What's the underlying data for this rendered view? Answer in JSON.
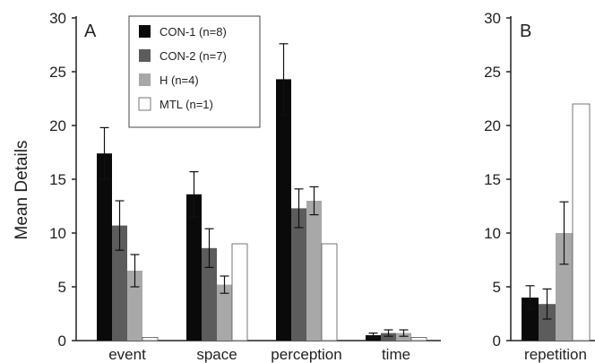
{
  "ylabel": "Mean Details",
  "series_colors": [
    "#0a0a0a",
    "#5c5c5c",
    "#a8a8a8",
    "#ffffff"
  ],
  "chart_data": [
    {
      "type": "bar",
      "panel": "A",
      "categories": [
        "event",
        "space",
        "perception",
        "time"
      ],
      "ylabel": "Mean Details",
      "ylim": [
        0,
        30
      ],
      "yticks": [
        0,
        5,
        10,
        15,
        20,
        25,
        30
      ],
      "legend": "top-left inside",
      "series": [
        {
          "name": "CON-1 (n=8)",
          "values": [
            17.4,
            13.6,
            24.3,
            0.5
          ],
          "errors": [
            2.4,
            2.1,
            3.3,
            0.2
          ]
        },
        {
          "name": "CON-2 (n=7)",
          "values": [
            10.7,
            8.6,
            12.3,
            0.7
          ],
          "errors": [
            2.3,
            1.8,
            1.8,
            0.3
          ]
        },
        {
          "name": "H (n=4)",
          "values": [
            6.5,
            5.2,
            13.0,
            0.7
          ],
          "errors": [
            1.5,
            0.8,
            1.3,
            0.3
          ]
        },
        {
          "name": "MTL (n=1)",
          "values": [
            0.3,
            9.0,
            9.0,
            0.3
          ],
          "errors": [
            0,
            0,
            0,
            0
          ]
        }
      ]
    },
    {
      "type": "bar",
      "panel": "B",
      "categories": [
        "repetition"
      ],
      "ylim": [
        0,
        30
      ],
      "yticks": [
        0,
        5,
        10,
        15,
        20,
        25,
        30
      ],
      "series": [
        {
          "name": "CON-1 (n=8)",
          "values": [
            4.0
          ],
          "errors": [
            1.1
          ]
        },
        {
          "name": "CON-2 (n=7)",
          "values": [
            3.4
          ],
          "errors": [
            1.4
          ]
        },
        {
          "name": "H (n=4)",
          "values": [
            10.0
          ],
          "errors": [
            2.9
          ]
        },
        {
          "name": "MTL (n=1)",
          "values": [
            22.0
          ],
          "errors": [
            0
          ]
        }
      ]
    }
  ]
}
